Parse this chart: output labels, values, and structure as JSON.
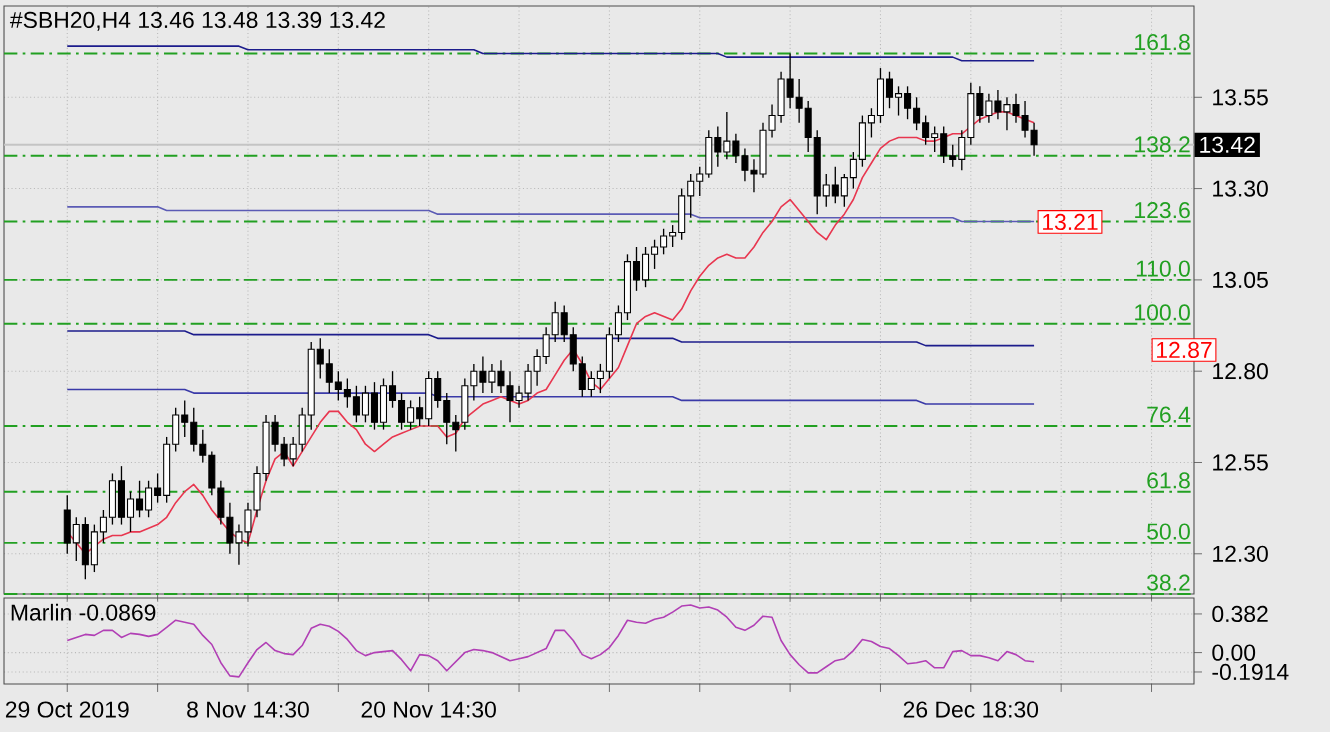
{
  "chart_data": [
    {
      "type": "candlestick",
      "title": "#SBH20,H4  13.46 13.48 13.39 13.42",
      "ylim": [
        12.19,
        13.8
      ],
      "categories": [
        null,
        null,
        null,
        null,
        null,
        null,
        null,
        null,
        null,
        null,
        null,
        null,
        null,
        null,
        null,
        null,
        null,
        null,
        null,
        null,
        null,
        null,
        null,
        null,
        null,
        null,
        null,
        null,
        null,
        null,
        null,
        null,
        null,
        null,
        null,
        null,
        null,
        null,
        null,
        null,
        null,
        null,
        null,
        null,
        null,
        null,
        null,
        null,
        null,
        null,
        null,
        null,
        null,
        null,
        null,
        null,
        null,
        null,
        null,
        null,
        null,
        null,
        null,
        null,
        null,
        null,
        null,
        null,
        null,
        null,
        null,
        null,
        null,
        null,
        null,
        null,
        null,
        null,
        null,
        null,
        null,
        null,
        null,
        null,
        null,
        null,
        null,
        null,
        null,
        null,
        null,
        null,
        null,
        null,
        null,
        null,
        null,
        null,
        null,
        null,
        null,
        null,
        null,
        null,
        null,
        null,
        null,
        null
      ],
      "yticks": [
        13.55,
        {
          "value": 13.3,
          "label": "13.30"
        },
        13.05,
        {
          "value": 12.8,
          "label": "12.80"
        },
        12.55,
        {
          "value": 12.3,
          "label": "12.30"
        }
      ],
      "tick_labels": "y",
      "grid": true,
      "ohlc": [
        [
          12.42,
          12.46,
          12.3,
          12.33
        ],
        [
          12.33,
          12.4,
          12.28,
          12.38
        ],
        [
          12.38,
          12.4,
          12.23,
          12.27
        ],
        [
          12.27,
          12.38,
          12.25,
          12.36
        ],
        [
          12.36,
          12.42,
          12.33,
          12.4
        ],
        [
          12.4,
          12.52,
          12.38,
          12.5
        ],
        [
          12.5,
          12.54,
          12.38,
          12.4
        ],
        [
          12.4,
          12.47,
          12.36,
          12.45
        ],
        [
          12.45,
          12.5,
          12.4,
          12.42
        ],
        [
          12.42,
          12.5,
          12.4,
          12.48
        ],
        [
          12.48,
          12.52,
          12.44,
          12.46
        ],
        [
          12.46,
          12.62,
          12.44,
          12.6
        ],
        [
          12.6,
          12.7,
          12.58,
          12.68
        ],
        [
          12.68,
          12.72,
          12.62,
          12.66
        ],
        [
          12.66,
          12.7,
          12.58,
          12.6
        ],
        [
          12.6,
          12.64,
          12.55,
          12.57
        ],
        [
          12.57,
          12.58,
          12.46,
          12.48
        ],
        [
          12.48,
          12.5,
          12.38,
          12.4
        ],
        [
          12.4,
          12.44,
          12.3,
          12.33
        ],
        [
          12.33,
          12.38,
          12.27,
          12.36
        ],
        [
          12.36,
          12.44,
          12.32,
          12.42
        ],
        [
          12.42,
          12.54,
          12.4,
          12.52
        ],
        [
          12.52,
          12.68,
          12.5,
          12.66
        ],
        [
          12.66,
          12.68,
          12.58,
          12.6
        ],
        [
          12.6,
          12.62,
          12.54,
          12.56
        ],
        [
          12.56,
          12.62,
          12.54,
          12.6
        ],
        [
          12.6,
          12.7,
          12.58,
          12.68
        ],
        [
          12.68,
          12.88,
          12.64,
          12.86
        ],
        [
          12.86,
          12.89,
          12.78,
          12.82
        ],
        [
          12.82,
          12.86,
          12.74,
          12.77
        ],
        [
          12.77,
          12.8,
          12.72,
          12.75
        ],
        [
          12.75,
          12.78,
          12.7,
          12.73
        ],
        [
          12.73,
          12.76,
          12.66,
          12.68
        ],
        [
          12.68,
          12.76,
          12.66,
          12.74
        ],
        [
          12.74,
          12.77,
          12.64,
          12.66
        ],
        [
          12.66,
          12.78,
          12.64,
          12.76
        ],
        [
          12.76,
          12.8,
          12.7,
          12.72
        ],
        [
          12.72,
          12.74,
          12.64,
          12.66
        ],
        [
          12.66,
          12.72,
          12.64,
          12.7
        ],
        [
          12.7,
          12.73,
          12.65,
          12.67
        ],
        [
          12.67,
          12.8,
          12.65,
          12.78
        ],
        [
          12.78,
          12.8,
          12.7,
          12.72
        ],
        [
          12.72,
          12.74,
          12.6,
          12.66
        ],
        [
          12.66,
          12.68,
          12.58,
          12.64
        ],
        [
          12.66,
          12.78,
          12.64,
          12.76
        ],
        [
          12.76,
          12.82,
          12.72,
          12.8
        ],
        [
          12.8,
          12.84,
          12.74,
          12.77
        ],
        [
          12.77,
          12.82,
          12.74,
          12.8
        ],
        [
          12.8,
          12.83,
          12.74,
          12.76
        ],
        [
          12.76,
          12.8,
          12.66,
          12.72
        ],
        [
          12.72,
          12.76,
          12.7,
          12.74
        ],
        [
          12.74,
          12.82,
          12.72,
          12.8
        ],
        [
          12.8,
          12.86,
          12.76,
          12.84
        ],
        [
          12.84,
          12.92,
          12.82,
          12.9
        ],
        [
          12.9,
          12.99,
          12.88,
          12.96
        ],
        [
          12.96,
          12.98,
          12.88,
          12.9
        ],
        [
          12.9,
          12.92,
          12.8,
          12.82
        ],
        [
          12.82,
          12.84,
          12.73,
          12.75
        ],
        [
          12.75,
          12.8,
          12.73,
          12.78
        ],
        [
          12.78,
          12.82,
          12.74,
          12.8
        ],
        [
          12.8,
          12.92,
          12.78,
          12.9
        ],
        [
          12.9,
          12.98,
          12.88,
          12.96
        ],
        [
          12.96,
          13.12,
          12.94,
          13.1
        ],
        [
          13.1,
          13.14,
          13.02,
          13.05
        ],
        [
          13.05,
          13.14,
          13.03,
          13.12
        ],
        [
          13.12,
          13.16,
          13.08,
          13.14
        ],
        [
          13.14,
          13.19,
          13.12,
          13.17
        ],
        [
          13.17,
          13.2,
          13.14,
          13.18
        ],
        [
          13.18,
          13.3,
          13.16,
          13.28
        ],
        [
          13.28,
          13.34,
          13.22,
          13.32
        ],
        [
          13.32,
          13.36,
          13.28,
          13.34
        ],
        [
          13.34,
          13.46,
          13.33,
          13.44
        ],
        [
          13.44,
          13.47,
          13.36,
          13.4
        ],
        [
          13.4,
          13.51,
          13.38,
          13.43
        ],
        [
          13.43,
          13.45,
          13.37,
          13.39
        ],
        [
          13.39,
          13.41,
          13.32,
          13.35
        ],
        [
          13.35,
          13.38,
          13.29,
          13.34
        ],
        [
          13.34,
          13.48,
          13.33,
          13.46
        ],
        [
          13.46,
          13.53,
          13.44,
          13.5
        ],
        [
          13.5,
          13.62,
          13.48,
          13.6
        ],
        [
          13.6,
          13.67,
          13.52,
          13.55
        ],
        [
          13.55,
          13.6,
          13.48,
          13.52
        ],
        [
          13.52,
          13.54,
          13.4,
          13.44
        ],
        [
          13.44,
          13.46,
          13.23,
          13.28
        ],
        [
          13.28,
          13.34,
          13.25,
          13.31
        ],
        [
          13.31,
          13.36,
          13.26,
          13.28
        ],
        [
          13.28,
          13.34,
          13.25,
          13.33
        ],
        [
          13.33,
          13.4,
          13.3,
          13.38
        ],
        [
          13.38,
          13.5,
          13.36,
          13.48
        ],
        [
          13.48,
          13.52,
          13.44,
          13.5
        ],
        [
          13.5,
          13.63,
          13.48,
          13.6
        ],
        [
          13.6,
          13.62,
          13.52,
          13.55
        ],
        [
          13.55,
          13.58,
          13.5,
          13.56
        ],
        [
          13.56,
          13.58,
          13.49,
          13.52
        ],
        [
          13.52,
          13.55,
          13.46,
          13.48
        ],
        [
          13.48,
          13.5,
          13.42,
          13.44
        ],
        [
          13.44,
          13.47,
          13.4,
          13.45
        ],
        [
          13.45,
          13.47,
          13.37,
          13.39
        ],
        [
          13.39,
          13.42,
          13.36,
          13.38
        ],
        [
          13.38,
          13.46,
          13.35,
          13.44
        ],
        [
          13.44,
          13.59,
          13.42,
          13.56
        ],
        [
          13.56,
          13.58,
          13.48,
          13.5
        ],
        [
          13.5,
          13.56,
          13.48,
          13.54
        ],
        [
          13.54,
          13.57,
          13.49,
          13.51
        ],
        [
          13.51,
          13.55,
          13.46,
          13.53
        ],
        [
          13.53,
          13.56,
          13.48,
          13.5
        ],
        [
          13.5,
          13.54,
          13.44,
          13.46
        ],
        [
          13.46,
          13.48,
          13.39,
          13.42
        ]
      ],
      "series": [
        {
          "type": "line",
          "color": "#1c1c8c",
          "values": [
            13.69,
            13.69,
            13.69,
            13.69,
            13.69,
            13.69,
            13.69,
            13.69,
            13.69,
            13.69,
            13.69,
            13.69,
            13.69,
            13.69,
            13.69,
            13.69,
            13.69,
            13.69,
            13.69,
            13.69,
            13.68,
            13.68,
            13.68,
            13.68,
            13.68,
            13.68,
            13.68,
            13.68,
            13.68,
            13.68,
            13.68,
            13.68,
            13.68,
            13.68,
            13.68,
            13.68,
            13.68,
            13.68,
            13.68,
            13.68,
            13.68,
            13.68,
            13.68,
            13.68,
            13.68,
            13.68,
            13.67,
            13.67,
            13.67,
            13.67,
            13.67,
            13.67,
            13.67,
            13.67,
            13.67,
            13.67,
            13.67,
            13.67,
            13.67,
            13.67,
            13.67,
            13.67,
            13.67,
            13.67,
            13.67,
            13.67,
            13.67,
            13.67,
            13.67,
            13.67,
            13.67,
            13.67,
            13.67,
            13.66,
            13.66,
            13.66,
            13.66,
            13.66,
            13.66,
            13.66,
            13.66,
            13.66,
            13.66,
            13.66,
            13.66,
            13.66,
            13.66,
            13.66,
            13.66,
            13.66,
            13.66,
            13.66,
            13.66,
            13.66,
            13.66,
            13.66,
            13.66,
            13.66,
            13.66,
            13.65,
            13.65,
            13.65,
            13.65,
            13.65,
            13.65,
            13.65,
            13.65,
            13.65
          ]
        },
        {
          "type": "line",
          "color": "#5b5bb5",
          "values": [
            13.25,
            13.25,
            13.25,
            13.25,
            13.25,
            13.25,
            13.25,
            13.25,
            13.25,
            13.25,
            13.25,
            13.24,
            13.24,
            13.24,
            13.24,
            13.24,
            13.24,
            13.24,
            13.24,
            13.24,
            13.24,
            13.24,
            13.24,
            13.24,
            13.24,
            13.24,
            13.24,
            13.24,
            13.24,
            13.24,
            13.24,
            13.24,
            13.24,
            13.24,
            13.24,
            13.24,
            13.24,
            13.24,
            13.24,
            13.24,
            13.24,
            13.23,
            13.23,
            13.23,
            13.23,
            13.23,
            13.23,
            13.23,
            13.23,
            13.23,
            13.23,
            13.23,
            13.23,
            13.23,
            13.23,
            13.23,
            13.23,
            13.23,
            13.23,
            13.23,
            13.23,
            13.23,
            13.23,
            13.23,
            13.23,
            13.23,
            13.23,
            13.23,
            13.23,
            13.23,
            13.22,
            13.22,
            13.22,
            13.22,
            13.22,
            13.22,
            13.22,
            13.22,
            13.22,
            13.22,
            13.22,
            13.22,
            13.22,
            13.22,
            13.22,
            13.22,
            13.22,
            13.22,
            13.22,
            13.22,
            13.22,
            13.22,
            13.22,
            13.22,
            13.22,
            13.22,
            13.22,
            13.22,
            13.22,
            13.21,
            13.21,
            13.21,
            13.21,
            13.21,
            13.21,
            13.21,
            13.21,
            13.21
          ]
        },
        {
          "type": "line",
          "color": "#1c1c8c",
          "values": [
            12.91,
            12.91,
            12.91,
            12.91,
            12.91,
            12.91,
            12.91,
            12.91,
            12.91,
            12.91,
            12.91,
            12.91,
            12.91,
            12.91,
            12.9,
            12.9,
            12.9,
            12.9,
            12.9,
            12.9,
            12.9,
            12.9,
            12.9,
            12.9,
            12.9,
            12.9,
            12.9,
            12.9,
            12.9,
            12.9,
            12.9,
            12.9,
            12.9,
            12.9,
            12.9,
            12.9,
            12.9,
            12.9,
            12.9,
            12.9,
            12.9,
            12.89,
            12.89,
            12.89,
            12.89,
            12.89,
            12.89,
            12.89,
            12.89,
            12.89,
            12.89,
            12.89,
            12.89,
            12.89,
            12.89,
            12.89,
            12.89,
            12.89,
            12.89,
            12.89,
            12.89,
            12.89,
            12.89,
            12.89,
            12.89,
            12.89,
            12.89,
            12.89,
            12.88,
            12.88,
            12.88,
            12.88,
            12.88,
            12.88,
            12.88,
            12.88,
            12.88,
            12.88,
            12.88,
            12.88,
            12.88,
            12.88,
            12.88,
            12.88,
            12.88,
            12.88,
            12.88,
            12.88,
            12.88,
            12.88,
            12.88,
            12.88,
            12.88,
            12.88,
            12.88,
            12.87,
            12.87,
            12.87,
            12.87,
            12.87,
            12.87,
            12.87,
            12.87,
            12.87,
            12.87,
            12.87,
            12.87,
            12.87
          ]
        },
        {
          "type": "line",
          "color": "#3a3aa8",
          "values": [
            12.75,
            12.75,
            12.75,
            12.75,
            12.75,
            12.75,
            12.75,
            12.75,
            12.75,
            12.75,
            12.75,
            12.75,
            12.75,
            12.75,
            12.74,
            12.74,
            12.74,
            12.74,
            12.74,
            12.74,
            12.74,
            12.74,
            12.74,
            12.74,
            12.74,
            12.74,
            12.74,
            12.74,
            12.74,
            12.74,
            12.74,
            12.74,
            12.74,
            12.74,
            12.74,
            12.74,
            12.74,
            12.74,
            12.74,
            12.74,
            12.74,
            12.73,
            12.73,
            12.73,
            12.73,
            12.73,
            12.73,
            12.73,
            12.73,
            12.73,
            12.73,
            12.73,
            12.73,
            12.73,
            12.73,
            12.73,
            12.73,
            12.73,
            12.73,
            12.73,
            12.73,
            12.73,
            12.73,
            12.73,
            12.73,
            12.73,
            12.73,
            12.73,
            12.72,
            12.72,
            12.72,
            12.72,
            12.72,
            12.72,
            12.72,
            12.72,
            12.72,
            12.72,
            12.72,
            12.72,
            12.72,
            12.72,
            12.72,
            12.72,
            12.72,
            12.72,
            12.72,
            12.72,
            12.72,
            12.72,
            12.72,
            12.72,
            12.72,
            12.72,
            12.72,
            12.71,
            12.71,
            12.71,
            12.71,
            12.71,
            12.71,
            12.71,
            12.71,
            12.71,
            12.71,
            12.71,
            12.71,
            12.71
          ]
        },
        {
          "type": "line",
          "color": "#e8364f",
          "values": [
            12.36,
            12.33,
            12.3,
            12.32,
            12.34,
            12.35,
            12.35,
            12.36,
            12.36,
            12.37,
            12.38,
            12.4,
            12.44,
            12.47,
            12.49,
            12.46,
            12.42,
            12.39,
            12.36,
            12.34,
            12.33,
            12.42,
            12.5,
            12.56,
            12.58,
            12.54,
            12.58,
            12.62,
            12.66,
            12.69,
            12.69,
            12.66,
            12.64,
            12.6,
            12.58,
            12.6,
            12.62,
            12.63,
            12.64,
            12.65,
            12.65,
            12.65,
            12.62,
            12.63,
            12.67,
            12.69,
            12.71,
            12.72,
            12.73,
            12.72,
            12.71,
            12.72,
            12.74,
            12.75,
            12.79,
            12.83,
            12.86,
            12.82,
            12.77,
            12.75,
            12.78,
            12.81,
            12.87,
            12.93,
            12.95,
            12.96,
            12.95,
            12.94,
            12.97,
            13.02,
            13.06,
            13.09,
            13.11,
            13.12,
            13.11,
            13.11,
            13.14,
            13.18,
            13.21,
            13.25,
            13.27,
            13.24,
            13.21,
            13.18,
            13.16,
            13.2,
            13.23,
            13.27,
            13.33,
            13.37,
            13.41,
            13.43,
            13.44,
            13.44,
            13.44,
            13.43,
            13.43,
            13.44,
            13.45,
            13.45,
            13.47,
            13.49,
            13.5,
            13.51,
            13.51,
            13.5,
            13.49,
            13.48
          ]
        }
      ],
      "ref_lines": [
        {
          "axis": "y",
          "value": 13.67,
          "color": "#22a022",
          "line_style": "dashed"
        },
        {
          "axis": "y",
          "value": 13.39,
          "color": "#22a022",
          "line_style": "dashed"
        },
        {
          "axis": "y",
          "value": 13.21,
          "color": "#22a022",
          "line_style": "dashed"
        },
        {
          "axis": "y",
          "value": 13.05,
          "color": "#22a022",
          "line_style": "dashed"
        },
        {
          "axis": "y",
          "value": 12.93,
          "color": "#22a022",
          "line_style": "dashed"
        },
        {
          "axis": "y",
          "value": 12.65,
          "color": "#22a022",
          "line_style": "dashed"
        },
        {
          "axis": "y",
          "value": 12.47,
          "color": "#22a022",
          "line_style": "dashed"
        },
        {
          "axis": "y",
          "value": 12.33,
          "color": "#22a022",
          "line_style": "dashed"
        },
        {
          "axis": "y",
          "value": 12.19,
          "color": "#22a022",
          "line_style": "dashed"
        },
        {
          "axis": "y",
          "value": 13.42,
          "label": "13.42",
          "color": "#c4c4c4",
          "line_style": "solid"
        }
      ],
      "annotations": [
        {
          "text": "161.8",
          "y": 13.67
        },
        {
          "text": "138.2",
          "y": 13.39
        },
        {
          "text": "123.6",
          "y": 13.21
        },
        {
          "text": "110.0",
          "y": 13.05
        },
        {
          "text": "100.0",
          "y": 12.93
        },
        {
          "text": "76.4",
          "y": 12.65
        },
        {
          "text": "61.8",
          "y": 12.47
        },
        {
          "text": "50.0",
          "y": 12.33
        },
        {
          "text": "38.2",
          "y": 12.19
        },
        "13.21",
        "12.87"
      ]
    },
    {
      "type": "line",
      "title": "Marlin -0.0869",
      "ylim": [
        -0.31,
        0.54
      ],
      "categories": [
        "29 Oct 2019",
        null,
        null,
        null,
        null,
        null,
        null,
        null,
        null,
        null,
        null,
        null,
        null,
        null,
        null,
        null,
        null,
        null,
        null,
        null,
        "8 Nov 14:30",
        null,
        null,
        null,
        null,
        null,
        null,
        null,
        null,
        null,
        null,
        null,
        null,
        null,
        null,
        null,
        null,
        null,
        null,
        null,
        "20 Nov 14:30",
        null,
        null,
        null,
        null,
        null,
        null,
        null,
        null,
        null,
        null,
        null,
        null,
        null,
        null,
        null,
        null,
        null,
        null,
        null,
        null,
        null,
        null,
        null,
        null,
        null,
        null,
        null,
        null,
        null,
        null,
        null,
        null,
        null,
        null,
        null,
        null,
        null,
        null,
        null,
        null,
        null,
        null,
        null,
        null,
        null,
        null,
        null,
        null,
        null,
        null,
        null,
        null,
        null,
        null,
        null,
        null,
        null,
        null,
        null,
        "26 Dec 18:30",
        null,
        null,
        null,
        null,
        null,
        null,
        null
      ],
      "yticks": [
        0.382,
        {
          "value": 0,
          "label": "0.00"
        },
        -0.1914
      ],
      "grid": true,
      "series": [
        {
          "color": "#b13fb5",
          "values": [
            0.12,
            0.15,
            0.18,
            0.17,
            0.22,
            0.22,
            0.15,
            0.19,
            0.18,
            0.16,
            0.18,
            0.25,
            0.32,
            0.3,
            0.28,
            0.17,
            0.08,
            -0.1,
            -0.23,
            -0.24,
            -0.1,
            0.03,
            0.1,
            0.02,
            -0.01,
            -0.02,
            0.07,
            0.24,
            0.28,
            0.26,
            0.21,
            0.13,
            0.02,
            -0.03,
            0,
            0.01,
            0.02,
            -0.07,
            -0.18,
            -0.02,
            -0.03,
            -0.08,
            -0.18,
            -0.09,
            0,
            0.03,
            0.02,
            0,
            -0.04,
            -0.08,
            -0.06,
            -0.04,
            0,
            0.04,
            0.22,
            0.22,
            0.12,
            -0.02,
            -0.06,
            -0.02,
            0.05,
            0.17,
            0.32,
            0.3,
            0.29,
            0.33,
            0.35,
            0.4,
            0.46,
            0.47,
            0.44,
            0.45,
            0.42,
            0.35,
            0.25,
            0.22,
            0.27,
            0.36,
            0.35,
            0.12,
            -0.02,
            -0.12,
            -0.2,
            -0.2,
            -0.14,
            -0.08,
            -0.06,
            0.02,
            0.13,
            0.11,
            0.06,
            0.04,
            -0.03,
            -0.11,
            -0.1,
            -0.08,
            -0.15,
            -0.15,
            0.01,
            0.02,
            -0.03,
            -0.03,
            -0.05,
            -0.08,
            0.01,
            -0.02,
            -0.08,
            -0.09
          ]
        }
      ]
    }
  ]
}
